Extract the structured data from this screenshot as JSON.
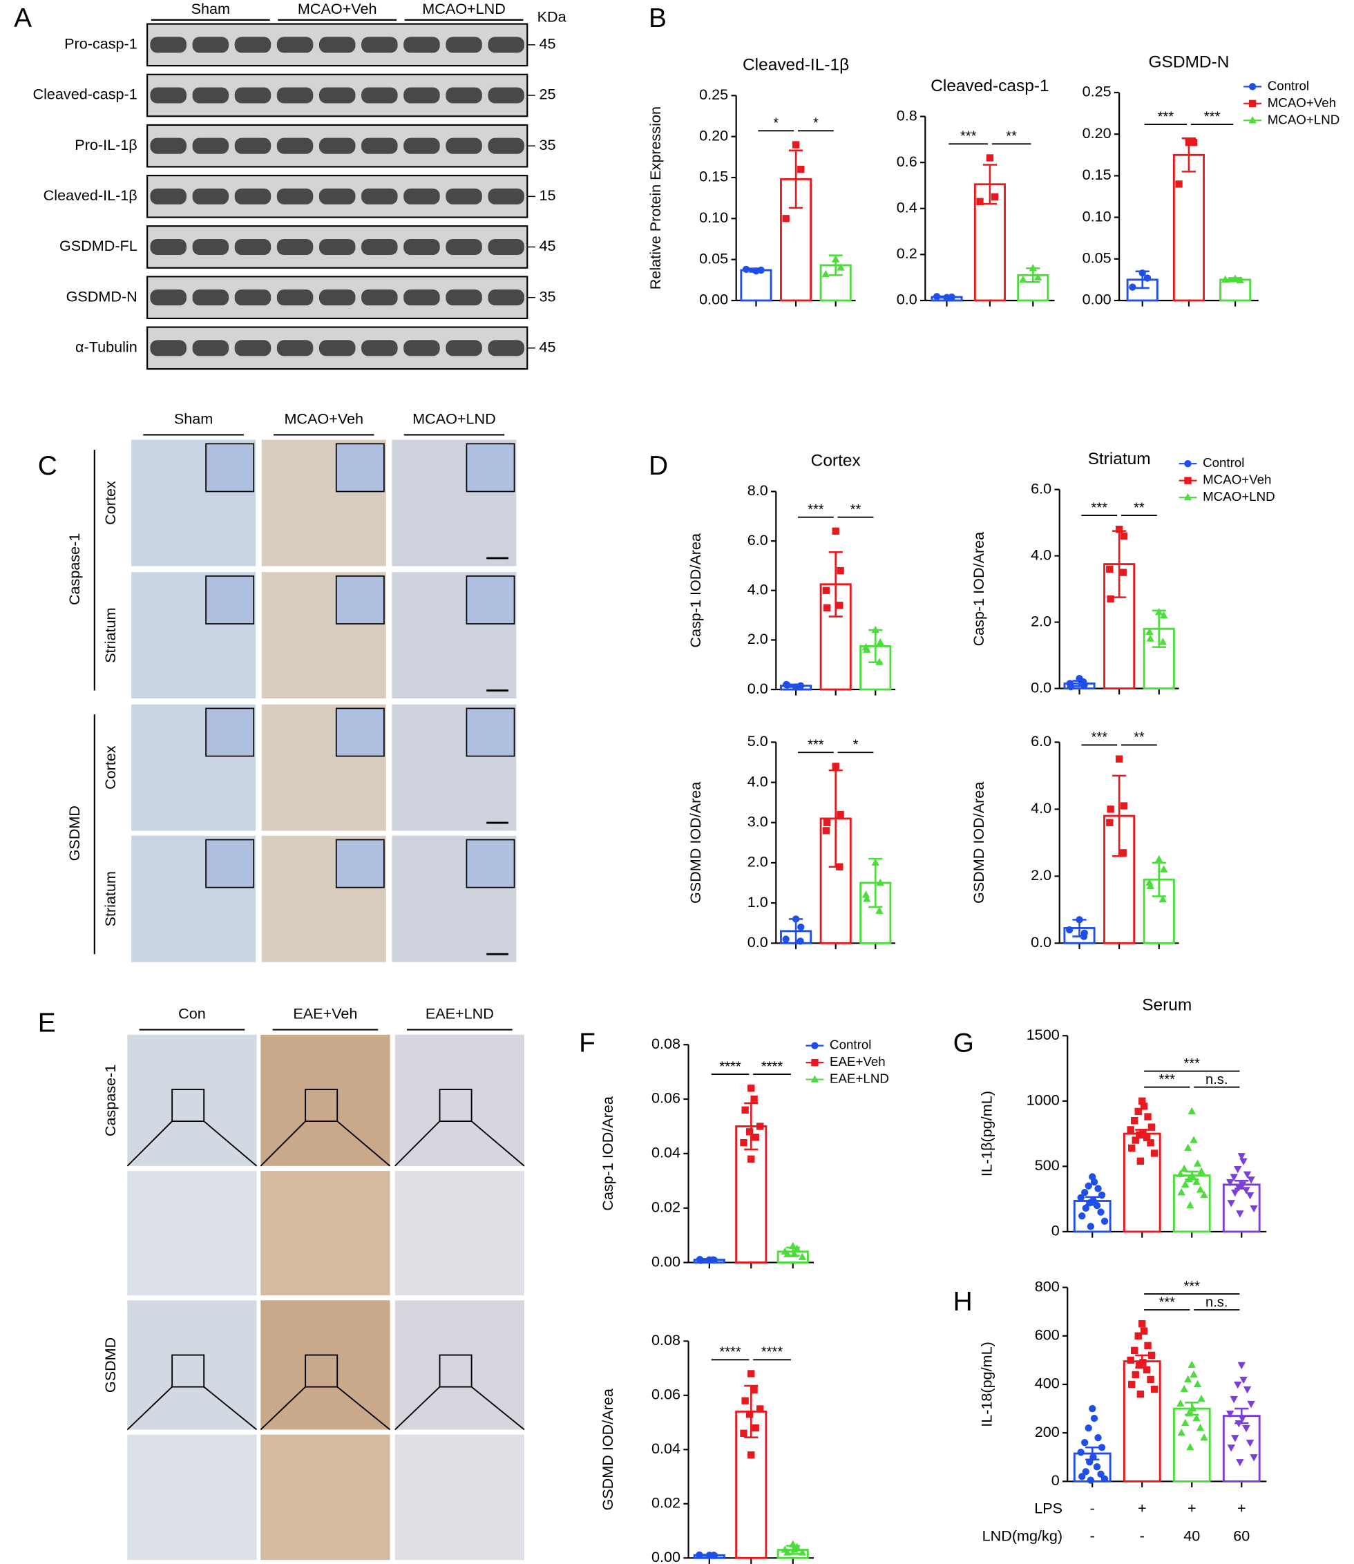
{
  "panel_labels": [
    "A",
    "B",
    "C",
    "D",
    "E",
    "F",
    "G",
    "H"
  ],
  "blot": {
    "groups": [
      "Sham",
      "MCAO+Veh",
      "MCAO+LND"
    ],
    "unit": "KDa",
    "rows": [
      {
        "label": "Pro-casp-1",
        "kda": "45"
      },
      {
        "label": "Cleaved-casp-1",
        "kda": "25"
      },
      {
        "label": "Pro-IL-1β",
        "kda": "35"
      },
      {
        "label": "Cleaved-IL-1β",
        "kda": "15"
      },
      {
        "label": "GSDMD-FL",
        "kda": "45"
      },
      {
        "label": "GSDMD-N",
        "kda": "35"
      },
      {
        "label": "α-Tubulin",
        "kda": "45"
      }
    ]
  },
  "histology_c": {
    "columns": [
      "Sham",
      "MCAO+Veh",
      "MCAO+LND"
    ],
    "stains": [
      {
        "label": "Caspase-1",
        "regions": [
          "Cortex",
          "Striatum"
        ]
      },
      {
        "label": "GSDMD",
        "regions": [
          "Cortex",
          "Striatum"
        ]
      }
    ]
  },
  "histology_e": {
    "columns": [
      "Con",
      "EAE+Veh",
      "EAE+LND"
    ],
    "stains": [
      "Caspase-1",
      "GSDMD"
    ]
  },
  "chart_data": [
    {
      "type": "bar",
      "title": "Cleaved-IL-1β",
      "ylabel": "Relative Protein Expression",
      "ylim": [
        0,
        0.25
      ],
      "yticks": [
        {
          "value": 0,
          "label": "0.00"
        },
        0.05,
        {
          "value": 0.1,
          "label": "0.10"
        },
        0.15,
        {
          "value": 0.2,
          "label": "0.20"
        },
        0.25
      ],
      "series": [
        {
          "color": "#1f4fe8",
          "values": [
            0.037
          ],
          "errors": [
            0.002
          ],
          "points": [
            0.036,
            0.037,
            0.038
          ]
        },
        {
          "color": "#e8191e",
          "values": [
            0.148
          ],
          "errors": [
            0.035
          ],
          "points": [
            0.19,
            0.16,
            0.1
          ]
        },
        {
          "color": "#4cdc3c",
          "values": [
            0.043
          ],
          "errors": [
            0.012
          ],
          "points": [
            0.05,
            0.04,
            0.032
          ]
        }
      ],
      "significance": [
        {
          "groups": [
            0,
            1
          ],
          "label": "*"
        },
        {
          "groups": [
            1,
            2
          ],
          "label": "*"
        }
      ]
    },
    {
      "type": "bar",
      "title": "Cleaved-casp-1",
      "ylim": [
        0,
        0.8
      ],
      "yticks": [
        {
          "value": 0,
          "label": "0.0"
        },
        0.2,
        0.4,
        0.6,
        0.8
      ],
      "series": [
        {
          "color": "#1f4fe8",
          "values": [
            0.015
          ],
          "errors": [
            0.003
          ],
          "points": [
            0.013,
            0.015,
            0.017
          ]
        },
        {
          "color": "#e8191e",
          "values": [
            0.505
          ],
          "errors": [
            0.085
          ],
          "points": [
            0.62,
            0.45,
            0.43
          ]
        },
        {
          "color": "#4cdc3c",
          "values": [
            0.11
          ],
          "errors": [
            0.03
          ],
          "points": [
            0.14,
            0.1,
            0.09
          ]
        }
      ],
      "significance": [
        {
          "groups": [
            0,
            1
          ],
          "label": "***"
        },
        {
          "groups": [
            1,
            2
          ],
          "label": "**"
        }
      ]
    },
    {
      "type": "bar",
      "title": "GSDMD-N",
      "ylim": [
        0,
        0.25
      ],
      "legend": "upper right",
      "yticks": [
        {
          "value": 0,
          "label": "0.00"
        },
        0.05,
        {
          "value": 0.1,
          "label": "0.10"
        },
        0.15,
        {
          "value": 0.2,
          "label": "0.20"
        },
        0.25
      ],
      "series": [
        {
          "name": "Control",
          "color": "#1f4fe8",
          "values": [
            0.025
          ],
          "errors": [
            0.01
          ],
          "points": [
            0.033,
            0.027,
            0.016
          ]
        },
        {
          "name": "MCAO+Veh",
          "color": "#e8191e",
          "values": [
            0.175
          ],
          "errors": [
            0.02
          ],
          "points": [
            0.19,
            0.19,
            0.14
          ]
        },
        {
          "name": "MCAO+LND",
          "color": "#4cdc3c",
          "values": [
            0.025
          ],
          "errors": [
            0.002
          ],
          "points": [
            0.026,
            0.024,
            0.025
          ]
        }
      ],
      "significance": [
        {
          "groups": [
            0,
            1
          ],
          "label": "***"
        },
        {
          "groups": [
            1,
            2
          ],
          "label": "***"
        }
      ]
    },
    {
      "type": "bar",
      "title": "Cortex",
      "ylabel": "Casp-1 IOD/Area",
      "ylim": [
        0,
        8
      ],
      "yticks": [
        {
          "value": 0,
          "label": "0.0"
        },
        {
          "value": 2,
          "label": "2.0"
        },
        {
          "value": 4,
          "label": "4.0"
        },
        {
          "value": 6,
          "label": "6.0"
        },
        {
          "value": 8,
          "label": "8.0"
        }
      ],
      "series": [
        {
          "color": "#1f4fe8",
          "values": [
            0.15
          ],
          "errors": [
            0.05
          ],
          "points": [
            0.1,
            0.15,
            0.2,
            0.12,
            0.18
          ]
        },
        {
          "color": "#e8191e",
          "values": [
            4.25
          ],
          "errors": [
            1.3
          ],
          "points": [
            6.4,
            4.8,
            4.0,
            3.4,
            3.3
          ]
        },
        {
          "color": "#4cdc3c",
          "values": [
            1.75
          ],
          "errors": [
            0.65
          ],
          "points": [
            2.4,
            1.9,
            1.7,
            1.1,
            1.6
          ]
        }
      ],
      "significance": [
        {
          "groups": [
            0,
            1
          ],
          "label": "***"
        },
        {
          "groups": [
            1,
            2
          ],
          "label": "**"
        }
      ]
    },
    {
      "type": "bar",
      "title": "Striatum",
      "ylabel": "Casp-1 IOD/Area",
      "ylim": [
        0,
        6
      ],
      "legend": "upper right",
      "yticks": [
        {
          "value": 0,
          "label": "0.0"
        },
        {
          "value": 2,
          "label": "2.0"
        },
        {
          "value": 4,
          "label": "4.0"
        },
        {
          "value": 6,
          "label": "6.0"
        }
      ],
      "series": [
        {
          "name": "Control",
          "color": "#1f4fe8",
          "values": [
            0.15
          ],
          "errors": [
            0.08
          ],
          "points": [
            0.3,
            0.1,
            0.15,
            0.2,
            0.05
          ]
        },
        {
          "name": "MCAO+Veh",
          "color": "#e8191e",
          "values": [
            3.75
          ],
          "errors": [
            1.0
          ],
          "points": [
            4.8,
            4.6,
            3.6,
            3.5,
            2.7
          ]
        },
        {
          "name": "MCAO+LND",
          "color": "#4cdc3c",
          "values": [
            1.8
          ],
          "errors": [
            0.55
          ],
          "points": [
            2.3,
            2.2,
            1.7,
            1.4,
            1.5
          ]
        }
      ],
      "significance": [
        {
          "groups": [
            0,
            1
          ],
          "label": "***"
        },
        {
          "groups": [
            1,
            2
          ],
          "label": "**"
        }
      ]
    },
    {
      "type": "bar",
      "ylabel": "GSDMD IOD/Area",
      "ylim": [
        0,
        5
      ],
      "yticks": [
        {
          "value": 0,
          "label": "0.0"
        },
        {
          "value": 1,
          "label": "1.0"
        },
        {
          "value": 2,
          "label": "2.0"
        },
        {
          "value": 3,
          "label": "3.0"
        },
        {
          "value": 4,
          "label": "4.0"
        },
        {
          "value": 5,
          "label": "5.0"
        }
      ],
      "series": [
        {
          "color": "#1f4fe8",
          "values": [
            0.3
          ],
          "errors": [
            0.3
          ],
          "points": [
            0.6,
            0.4,
            0.1,
            0.05
          ]
        },
        {
          "color": "#e8191e",
          "values": [
            3.1
          ],
          "errors": [
            1.2
          ],
          "points": [
            4.4,
            3.2,
            2.8,
            1.9,
            3.0
          ]
        },
        {
          "color": "#4cdc3c",
          "values": [
            1.5
          ],
          "errors": [
            0.6
          ],
          "points": [
            2.0,
            1.5,
            1.2,
            0.8,
            1.1
          ]
        }
      ],
      "significance": [
        {
          "groups": [
            0,
            1
          ],
          "label": "***"
        },
        {
          "groups": [
            1,
            2
          ],
          "label": "*"
        }
      ]
    },
    {
      "type": "bar",
      "ylabel": "GSDMD IOD/Area",
      "ylim": [
        0,
        6
      ],
      "yticks": [
        {
          "value": 0,
          "label": "0.0"
        },
        {
          "value": 2,
          "label": "2.0"
        },
        {
          "value": 4,
          "label": "4.0"
        },
        {
          "value": 6,
          "label": "6.0"
        }
      ],
      "series": [
        {
          "color": "#1f4fe8",
          "values": [
            0.45
          ],
          "errors": [
            0.25
          ],
          "points": [
            0.7,
            0.3,
            0.4,
            0.2
          ]
        },
        {
          "color": "#e8191e",
          "values": [
            3.8
          ],
          "errors": [
            1.2
          ],
          "points": [
            5.5,
            4.1,
            3.6,
            2.7,
            4.0
          ]
        },
        {
          "color": "#4cdc3c",
          "values": [
            1.9
          ],
          "errors": [
            0.5
          ],
          "points": [
            2.5,
            2.2,
            1.8,
            1.3,
            1.7
          ]
        }
      ],
      "significance": [
        {
          "groups": [
            0,
            1
          ],
          "label": "***"
        },
        {
          "groups": [
            1,
            2
          ],
          "label": "**"
        }
      ]
    },
    {
      "type": "bar",
      "ylabel": "Casp-1 IOD/Area",
      "ylim": [
        0,
        0.08
      ],
      "legend": "upper right",
      "yticks": [
        {
          "value": 0,
          "label": "0.00"
        },
        0.02,
        0.04,
        0.06,
        0.08
      ],
      "series": [
        {
          "name": "Control",
          "color": "#1f4fe8",
          "values": [
            0.001
          ],
          "errors": [
            0.0003
          ],
          "points": [
            0.001,
            0.0009,
            0.0011,
            0.001,
            0.0008
          ]
        },
        {
          "name": "EAE+Veh",
          "color": "#e8191e",
          "values": [
            0.05
          ],
          "errors": [
            0.0085
          ],
          "points": [
            0.064,
            0.06,
            0.056,
            0.05,
            0.048,
            0.046,
            0.044,
            0.038
          ]
        },
        {
          "name": "EAE+LND",
          "color": "#4cdc3c",
          "values": [
            0.004
          ],
          "errors": [
            0.0015
          ],
          "points": [
            0.006,
            0.005,
            0.004,
            0.003,
            0.003,
            0.002
          ]
        }
      ],
      "significance": [
        {
          "groups": [
            0,
            1
          ],
          "label": "****"
        },
        {
          "groups": [
            1,
            2
          ],
          "label": "****"
        }
      ]
    },
    {
      "type": "bar",
      "ylabel": "GSDMD IOD/Area",
      "ylim": [
        0,
        0.08
      ],
      "yticks": [
        {
          "value": 0,
          "label": "0.00"
        },
        0.02,
        0.04,
        0.06,
        0.08
      ],
      "series": [
        {
          "color": "#1f4fe8",
          "values": [
            0.001
          ],
          "errors": [
            0.0002
          ],
          "points": [
            0.001,
            0.0009,
            0.0011,
            0.001
          ]
        },
        {
          "color": "#e8191e",
          "values": [
            0.054
          ],
          "errors": [
            0.0095
          ],
          "points": [
            0.068,
            0.062,
            0.058,
            0.055,
            0.053,
            0.048,
            0.046,
            0.038
          ]
        },
        {
          "color": "#4cdc3c",
          "values": [
            0.003
          ],
          "errors": [
            0.0015
          ],
          "points": [
            0.005,
            0.004,
            0.003,
            0.003,
            0.002,
            0.002
          ]
        }
      ],
      "significance": [
        {
          "groups": [
            0,
            1
          ],
          "label": "****"
        },
        {
          "groups": [
            1,
            2
          ],
          "label": "****"
        }
      ]
    },
    {
      "type": "bar",
      "title": "Serum",
      "ylabel": "IL-1β(pg/mL)",
      "ylim": [
        0,
        1500
      ],
      "yticks": [
        0,
        500,
        1000,
        1500
      ],
      "series": [
        {
          "color": "#1f4fe8",
          "values": [
            235
          ],
          "errors": [
            30
          ],
          "points": [
            420,
            380,
            350,
            330,
            300,
            280,
            260,
            240,
            220,
            200,
            180,
            150,
            120,
            80,
            40
          ]
        },
        {
          "color": "#e8191e",
          "values": [
            750
          ],
          "errors": [
            30
          ],
          "points": [
            1000,
            960,
            920,
            880,
            850,
            800,
            780,
            760,
            740,
            720,
            700,
            680,
            640,
            600,
            540
          ]
        },
        {
          "color": "#4cdc3c",
          "values": [
            430
          ],
          "errors": [
            30
          ],
          "points": [
            920,
            700,
            640,
            520,
            480,
            460,
            440,
            420,
            400,
            380,
            360,
            320,
            300,
            280,
            200
          ]
        },
        {
          "color": "#7b3fd8",
          "values": [
            360
          ],
          "errors": [
            30
          ],
          "points": [
            580,
            540,
            480,
            440,
            420,
            400,
            380,
            360,
            340,
            320,
            300,
            280,
            220,
            180,
            140
          ]
        }
      ],
      "significance": [
        {
          "groups": [
            1,
            2
          ],
          "label": "***"
        },
        {
          "groups": [
            1,
            3
          ],
          "label": "***"
        },
        {
          "groups": [
            2,
            3
          ],
          "label": "n.s."
        }
      ]
    },
    {
      "type": "bar",
      "ylabel": "IL-18(pg/mL)",
      "ylim": [
        0,
        800
      ],
      "yticks": [
        0,
        200,
        400,
        600,
        800
      ],
      "series": [
        {
          "color": "#1f4fe8",
          "values": [
            115
          ],
          "errors": [
            25
          ],
          "points": [
            300,
            260,
            220,
            180,
            160,
            140,
            120,
            100,
            80,
            60,
            40,
            30,
            20,
            10,
            5
          ]
        },
        {
          "color": "#e8191e",
          "values": [
            495
          ],
          "errors": [
            25
          ],
          "points": [
            650,
            620,
            600,
            560,
            540,
            520,
            500,
            490,
            480,
            460,
            440,
            420,
            400,
            380,
            360
          ]
        },
        {
          "color": "#4cdc3c",
          "values": [
            300
          ],
          "errors": [
            25
          ],
          "points": [
            480,
            440,
            420,
            400,
            380,
            340,
            320,
            300,
            280,
            260,
            240,
            220,
            200,
            180,
            140
          ]
        },
        {
          "color": "#7b3fd8",
          "values": [
            270
          ],
          "errors": [
            30
          ],
          "points": [
            480,
            420,
            400,
            380,
            340,
            320,
            280,
            260,
            240,
            220,
            180,
            160,
            140,
            100,
            80
          ]
        }
      ],
      "significance": [
        {
          "groups": [
            1,
            2
          ],
          "label": "***"
        },
        {
          "groups": [
            1,
            3
          ],
          "label": "***"
        },
        {
          "groups": [
            2,
            3
          ],
          "label": "n.s."
        }
      ],
      "x_table": [
        {
          "label": "LPS",
          "cells": [
            "-",
            "+",
            "+",
            "+"
          ]
        },
        {
          "label": "LND(mg/kg)",
          "cells": [
            "-",
            "-",
            "40",
            "60"
          ]
        }
      ]
    }
  ]
}
